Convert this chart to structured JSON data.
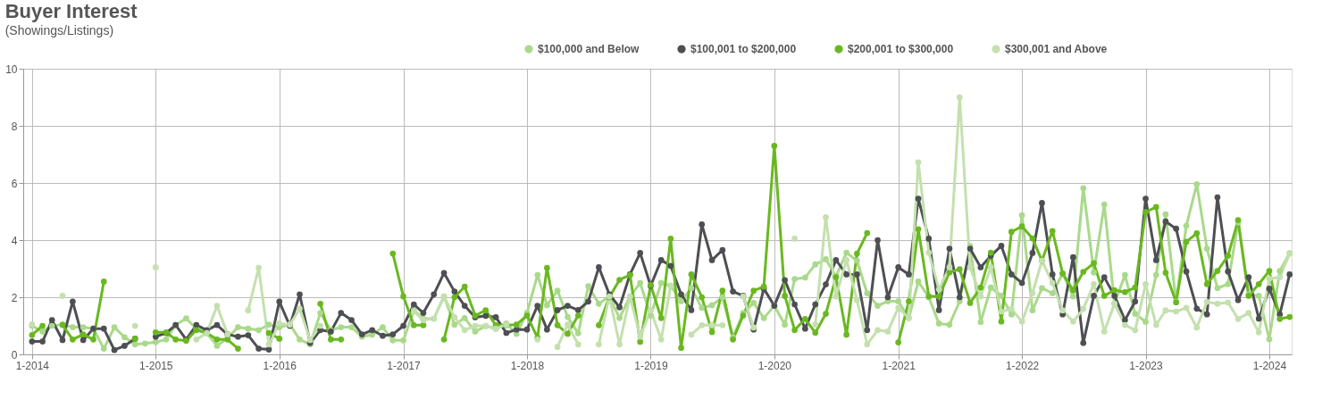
{
  "chart_data": {
    "type": "line",
    "title": "Buyer Interest",
    "subtitle": "(Showings/Listings)",
    "x": [
      "2014-01",
      "2014-02",
      "2014-03",
      "2014-04",
      "2014-05",
      "2014-06",
      "2014-07",
      "2014-08",
      "2014-09",
      "2014-10",
      "2014-11",
      "2014-12",
      "2015-01",
      "2015-02",
      "2015-03",
      "2015-04",
      "2015-05",
      "2015-06",
      "2015-07",
      "2015-08",
      "2015-09",
      "2015-10",
      "2015-11",
      "2015-12",
      "2016-01",
      "2016-02",
      "2016-03",
      "2016-04",
      "2016-05",
      "2016-06",
      "2016-07",
      "2016-08",
      "2016-09",
      "2016-10",
      "2016-11",
      "2016-12",
      "2017-01",
      "2017-02",
      "2017-03",
      "2017-04",
      "2017-05",
      "2017-06",
      "2017-07",
      "2017-08",
      "2017-09",
      "2017-10",
      "2017-11",
      "2017-12",
      "2018-01",
      "2018-02",
      "2018-03",
      "2018-04",
      "2018-05",
      "2018-06",
      "2018-07",
      "2018-08",
      "2018-09",
      "2018-10",
      "2018-11",
      "2018-12",
      "2019-01",
      "2019-02",
      "2019-03",
      "2019-04",
      "2019-05",
      "2019-06",
      "2019-07",
      "2019-08",
      "2019-09",
      "2019-10",
      "2019-11",
      "2019-12",
      "2020-01",
      "2020-02",
      "2020-03",
      "2020-04",
      "2020-05",
      "2020-06",
      "2020-07",
      "2020-08",
      "2020-09",
      "2020-10",
      "2020-11",
      "2020-12",
      "2021-01",
      "2021-02",
      "2021-03",
      "2021-04",
      "2021-05",
      "2021-06",
      "2021-07",
      "2021-08",
      "2021-09",
      "2021-10",
      "2021-11",
      "2021-12",
      "2022-01",
      "2022-02",
      "2022-03",
      "2022-04",
      "2022-05",
      "2022-06",
      "2022-07",
      "2022-08",
      "2022-09",
      "2022-10",
      "2022-11",
      "2022-12",
      "2023-01",
      "2023-02",
      "2023-03",
      "2023-04",
      "2023-05",
      "2023-06",
      "2023-07",
      "2023-08",
      "2023-09",
      "2023-10",
      "2023-11",
      "2023-12",
      "2024-01",
      "2024-02",
      "2024-03"
    ],
    "series": [
      {
        "name": "$100,000 and Below",
        "color": "#a9d98a",
        "values": [
          1.0,
          0.8,
          1.0,
          1.05,
          0.95,
          0.95,
          0.9,
          0.2,
          0.95,
          0.6,
          0.35,
          0.38,
          0.43,
          0.52,
          1.03,
          1.26,
          0.9,
          0.75,
          0.3,
          0.57,
          0.95,
          0.9,
          0.85,
          1.04,
          0.95,
          1.04,
          0.52,
          0.35,
          1.45,
          0.85,
          0.95,
          0.95,
          0.62,
          0.69,
          0.95,
          0.49,
          0.49,
          1.54,
          1.25,
          1.25,
          2.03,
          1.04,
          1.27,
          0.8,
          0.99,
          0.9,
          1.08,
          0.72,
          1.45,
          2.78,
          1.72,
          2.23,
          1.31,
          0.74,
          2.39,
          1.77,
          2.03,
          1.27,
          2.03,
          2.5,
          1.36,
          2.5,
          2.4,
          1.86,
          2.32,
          1.63,
          1.72,
          2.0,
          0.6,
          1.45,
          1.8,
          1.27,
          1.7,
          1.04,
          2.64,
          2.69,
          3.15,
          3.33,
          2.73,
          3.56,
          3.28,
          2.14,
          1.7,
          1.86,
          1.86,
          1.27,
          2.55,
          2.0,
          1.08,
          1.04,
          1.86,
          3.79,
          1.13,
          2.34,
          2.05,
          1.4,
          4.87,
          1.54,
          2.32,
          2.14,
          2.83,
          2.03,
          5.82,
          2.87,
          5.25,
          1.77,
          2.78,
          1.42,
          1.14,
          2.78,
          4.9,
          1.85,
          4.5,
          5.96,
          3.7,
          2.32,
          2.46,
          4.62,
          2.1,
          2.05,
          0.53,
          2.92,
          3.54
        ]
      },
      {
        "name": "$100,001 to $200,000",
        "color": "#4d4f53",
        "values": [
          0.45,
          0.45,
          1.2,
          0.5,
          1.85,
          0.5,
          0.9,
          0.9,
          0.15,
          0.3,
          0.55,
          null,
          0.62,
          0.75,
          1.03,
          0.52,
          1.03,
          0.85,
          1.03,
          0.7,
          0.62,
          0.67,
          0.2,
          0.17,
          1.85,
          1.0,
          2.1,
          0.4,
          0.85,
          0.8,
          1.45,
          1.2,
          0.7,
          0.85,
          0.65,
          0.7,
          1.0,
          1.75,
          1.45,
          2.1,
          2.85,
          2.2,
          1.7,
          1.3,
          1.35,
          1.3,
          0.75,
          0.87,
          0.87,
          1.7,
          0.87,
          1.55,
          1.7,
          1.55,
          1.85,
          3.05,
          2.1,
          1.65,
          2.8,
          3.55,
          2.4,
          3.3,
          3.1,
          2.1,
          1.55,
          4.55,
          3.3,
          3.65,
          2.2,
          2.05,
          0.87,
          2.3,
          1.7,
          2.6,
          1.75,
          0.9,
          1.75,
          2.45,
          3.3,
          2.8,
          2.8,
          0.85,
          4.0,
          2.0,
          3.05,
          2.8,
          5.45,
          4.05,
          1.55,
          3.7,
          2.0,
          3.7,
          3.05,
          3.45,
          3.8,
          2.8,
          2.5,
          3.55,
          5.3,
          2.8,
          1.4,
          3.4,
          0.4,
          2.05,
          2.7,
          2.05,
          1.2,
          1.85,
          5.45,
          3.3,
          4.65,
          4.4,
          2.9,
          1.6,
          1.4,
          5.5,
          2.9,
          1.9,
          2.7,
          1.25,
          2.3,
          1.4,
          2.8
        ]
      },
      {
        "name": "$200,001 to $300,000",
        "color": "#6ab820",
        "values": [
          0.68,
          1.0,
          null,
          1.03,
          0.52,
          0.7,
          0.52,
          2.55,
          null,
          null,
          0.55,
          null,
          0.77,
          0.77,
          0.52,
          0.48,
          0.85,
          0.75,
          0.52,
          0.52,
          0.2,
          null,
          null,
          0.75,
          0.55,
          null,
          null,
          null,
          1.77,
          0.52,
          0.52,
          null,
          null,
          null,
          null,
          3.53,
          2.03,
          1.02,
          1.02,
          null,
          0.52,
          2.0,
          2.37,
          1.36,
          1.54,
          1.02,
          1.02,
          1.04,
          1.36,
          0.58,
          3.03,
          1.02,
          0.72,
          1.36,
          null,
          1.02,
          2.0,
          2.61,
          2.78,
          0.44,
          2.43,
          1.27,
          4.05,
          0.23,
          2.8,
          2.0,
          0.78,
          2.23,
          0.52,
          1.36,
          2.23,
          2.37,
          7.3,
          2.05,
          0.85,
          1.24,
          0.76,
          1.42,
          2.7,
          0.69,
          3.53,
          4.25,
          null,
          null,
          0.42,
          1.86,
          4.38,
          2.03,
          2.03,
          2.87,
          2.98,
          1.8,
          2.34,
          3.56,
          1.15,
          4.29,
          4.48,
          4.06,
          3.28,
          4.32,
          2.83,
          2.25,
          2.89,
          3.19,
          2.05,
          2.25,
          2.18,
          2.34,
          4.98,
          5.16,
          2.86,
          1.82,
          3.94,
          4.24,
          2.46,
          2.92,
          3.45,
          4.7,
          2.05,
          2.46,
          2.92,
          1.24,
          1.31
        ]
      },
      {
        "name": "$300,001 and Above",
        "color": "#c4e0ae",
        "values": [
          1.05,
          null,
          null,
          2.05,
          null,
          null,
          null,
          null,
          null,
          null,
          1.0,
          null,
          3.05,
          null,
          null,
          null,
          0.52,
          0.75,
          1.7,
          0.7,
          null,
          1.54,
          3.03,
          0.35,
          1.08,
          1.04,
          1.6,
          0.5,
          1.0,
          null,
          null,
          null,
          null,
          null,
          null,
          null,
          null,
          1.5,
          1.2,
          1.25,
          2.03,
          1.3,
          0.85,
          1.0,
          1.0,
          0.9,
          1.04,
          null,
          null,
          0.52,
          null,
          0.26,
          1.04,
          0.35,
          null,
          0.35,
          2.03,
          0.35,
          2.03,
          0.62,
          1.54,
          0.52,
          2.39,
          null,
          0.69,
          1.02,
          1.02,
          1.02,
          null,
          2.03,
          0.94,
          null,
          null,
          null,
          4.05,
          null,
          1.04,
          4.8,
          2.03,
          3.3,
          1.9,
          0.35,
          0.85,
          0.8,
          1.63,
          1.27,
          6.72,
          3.56,
          2.28,
          3.05,
          9.0,
          3.05,
          2.03,
          3.05,
          1.5,
          1.59,
          1.15,
          2.14,
          3.28,
          2.5,
          1.54,
          1.15,
          1.59,
          2.46,
          0.8,
          1.77,
          1.03,
          0.85,
          2.46,
          1.03,
          1.54,
          1.5,
          1.63,
          0.94,
          1.84,
          1.77,
          1.82,
          1.24,
          1.45,
          0.77,
          2.65,
          2.7,
          3.52
        ]
      }
    ],
    "xlim": [
      "2013-12-06",
      "2024-03-07"
    ],
    "xticks": [
      {
        "value": "2014-01",
        "label": "1-2014"
      },
      {
        "value": "2015-01",
        "label": "1-2015"
      },
      {
        "value": "2016-01",
        "label": "1-2016"
      },
      {
        "value": "2017-01",
        "label": "1-2017"
      },
      {
        "value": "2018-01",
        "label": "1-2018"
      },
      {
        "value": "2019-01",
        "label": "1-2019"
      },
      {
        "value": "2020-01",
        "label": "1-2020"
      },
      {
        "value": "2021-01",
        "label": "1-2021"
      },
      {
        "value": "2022-01",
        "label": "1-2022"
      },
      {
        "value": "2023-01",
        "label": "1-2023"
      },
      {
        "value": "2024-01",
        "label": "1-2024"
      }
    ],
    "ylim": [
      0,
      10
    ],
    "yticks": [
      0,
      2,
      4,
      6,
      8,
      10
    ],
    "grid": true,
    "legend": "top right",
    "marker": "circle",
    "line_style": "solid"
  }
}
